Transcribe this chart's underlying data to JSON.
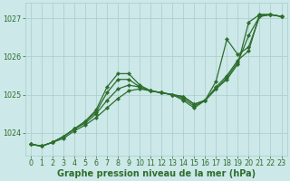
{
  "xlabel": "Graphe pression niveau de la mer (hPa)",
  "ylim": [
    1023.4,
    1027.4
  ],
  "xlim": [
    -0.5,
    23.5
  ],
  "yticks": [
    1024,
    1025,
    1026,
    1027
  ],
  "xticks": [
    0,
    1,
    2,
    3,
    4,
    5,
    6,
    7,
    8,
    9,
    10,
    11,
    12,
    13,
    14,
    15,
    16,
    17,
    18,
    19,
    20,
    21,
    22,
    23
  ],
  "bg_color": "#cce8e8",
  "grid_color": "#aacccc",
  "line_color": "#2d6e2d",
  "marker": "D",
  "markersize": 2.2,
  "linewidth": 0.9,
  "series": [
    [
      1023.7,
      1023.65,
      1023.75,
      1023.85,
      1024.05,
      1024.2,
      1024.4,
      1024.65,
      1024.9,
      1025.1,
      1025.15,
      1025.1,
      1025.05,
      1025.0,
      1024.95,
      1024.75,
      1024.85,
      1025.15,
      1025.4,
      1025.8,
      1026.9,
      1027.1,
      1027.1,
      1027.05
    ],
    [
      1023.7,
      1023.65,
      1023.75,
      1023.9,
      1024.1,
      1024.25,
      1024.5,
      1024.85,
      1025.15,
      1025.25,
      1025.2,
      1025.1,
      1025.05,
      1025.0,
      1024.95,
      1024.75,
      1024.85,
      1025.15,
      1025.45,
      1025.85,
      1026.55,
      1027.05,
      1027.1,
      1027.05
    ],
    [
      1023.7,
      1023.65,
      1023.75,
      1023.9,
      1024.1,
      1024.3,
      1024.55,
      1025.05,
      1025.4,
      1025.4,
      1025.2,
      1025.1,
      1025.05,
      1025.0,
      1024.9,
      1024.7,
      1024.85,
      1025.2,
      1025.5,
      1025.9,
      1026.15,
      1027.1,
      1027.1,
      1027.05
    ],
    [
      1023.7,
      1023.65,
      1023.75,
      1023.9,
      1024.1,
      1024.3,
      1024.6,
      1025.2,
      1025.55,
      1025.55,
      1025.25,
      1025.1,
      1025.05,
      1025.0,
      1024.85,
      1024.65,
      1024.85,
      1025.35,
      1026.45,
      1026.05,
      1026.25,
      1027.05,
      1027.1,
      1027.05
    ]
  ],
  "font_color": "#2d6e2d",
  "tick_fontsize": 5.8,
  "label_fontsize": 7.0,
  "label_fontweight": "bold"
}
